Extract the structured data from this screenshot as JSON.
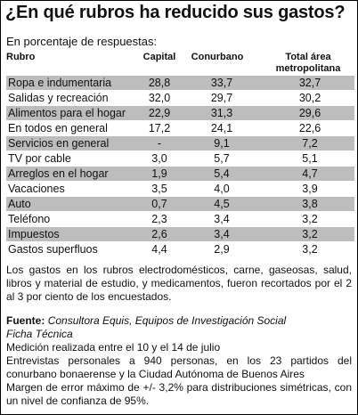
{
  "title": "¿En qué rubros ha reducido sus gastos?",
  "subtitle": "En porcentaje de respuestas:",
  "table": {
    "headers": {
      "rubro": "Rubro",
      "capital": "Capital",
      "conurbano": "Conurbano",
      "total_line1": "Total área",
      "total_line2": "metropolitana"
    },
    "rows": [
      {
        "label": "Ropa e indumentaria",
        "capital": "28,8",
        "conurbano": "33,7",
        "total": "32,7"
      },
      {
        "label": "Salidas y recreación",
        "capital": "32,0",
        "conurbano": "29,7",
        "total": "30,2"
      },
      {
        "label": "Alimentos para el hogar",
        "capital": "22,9",
        "conurbano": "31,3",
        "total": "29,6"
      },
      {
        "label": "En todos en general",
        "capital": "17,2",
        "conurbano": "24,1",
        "total": "22,6"
      },
      {
        "label": "Servicios en general",
        "capital": "-",
        "conurbano": "9,1",
        "total": "7,2"
      },
      {
        "label": "TV por cable",
        "capital": "3,0",
        "conurbano": "5,7",
        "total": "5,1"
      },
      {
        "label": "Arreglos en el hogar",
        "capital": "1,9",
        "conurbano": "5,4",
        "total": "4,7"
      },
      {
        "label": "Vacaciones",
        "capital": "3,5",
        "conurbano": "4,0",
        "total": "3,9"
      },
      {
        "label": "Auto",
        "capital": "0,7",
        "conurbano": "4,5",
        "total": "3,8"
      },
      {
        "label": "Teléfono",
        "capital": "2,3",
        "conurbano": "3,4",
        "total": "3,2"
      },
      {
        "label": "Impuestos",
        "capital": "2,6",
        "conurbano": "3,4",
        "total": "3,2"
      },
      {
        "label": "Gastos superfluos",
        "capital": "4,4",
        "conurbano": "2,9",
        "total": "3,2"
      }
    ]
  },
  "note": "Los gastos en los rubros electrodomésticos, carne, gaseosas, salud, libros y material de estudio, y medicamentos, fueron recortados por el 2 al 3 por ciento de los encuestados.",
  "source": {
    "label": "Fuente:",
    "org": "Consultora Equis, Equipos de Investigación Social",
    "ficha": "Ficha Técnica",
    "fechas": "Medición realizada entre el 10 y el 14 de julio",
    "entrevistas": "Entrevistas personales a 940 personas, en los 23 partidos del conurbano bonaerense y la Ciudad Autónoma de Buenos Aires",
    "margen": "Margen de error máximo de +/- 3,2% para distribuciones simétricas, con un nivel de confianza de 95%."
  }
}
